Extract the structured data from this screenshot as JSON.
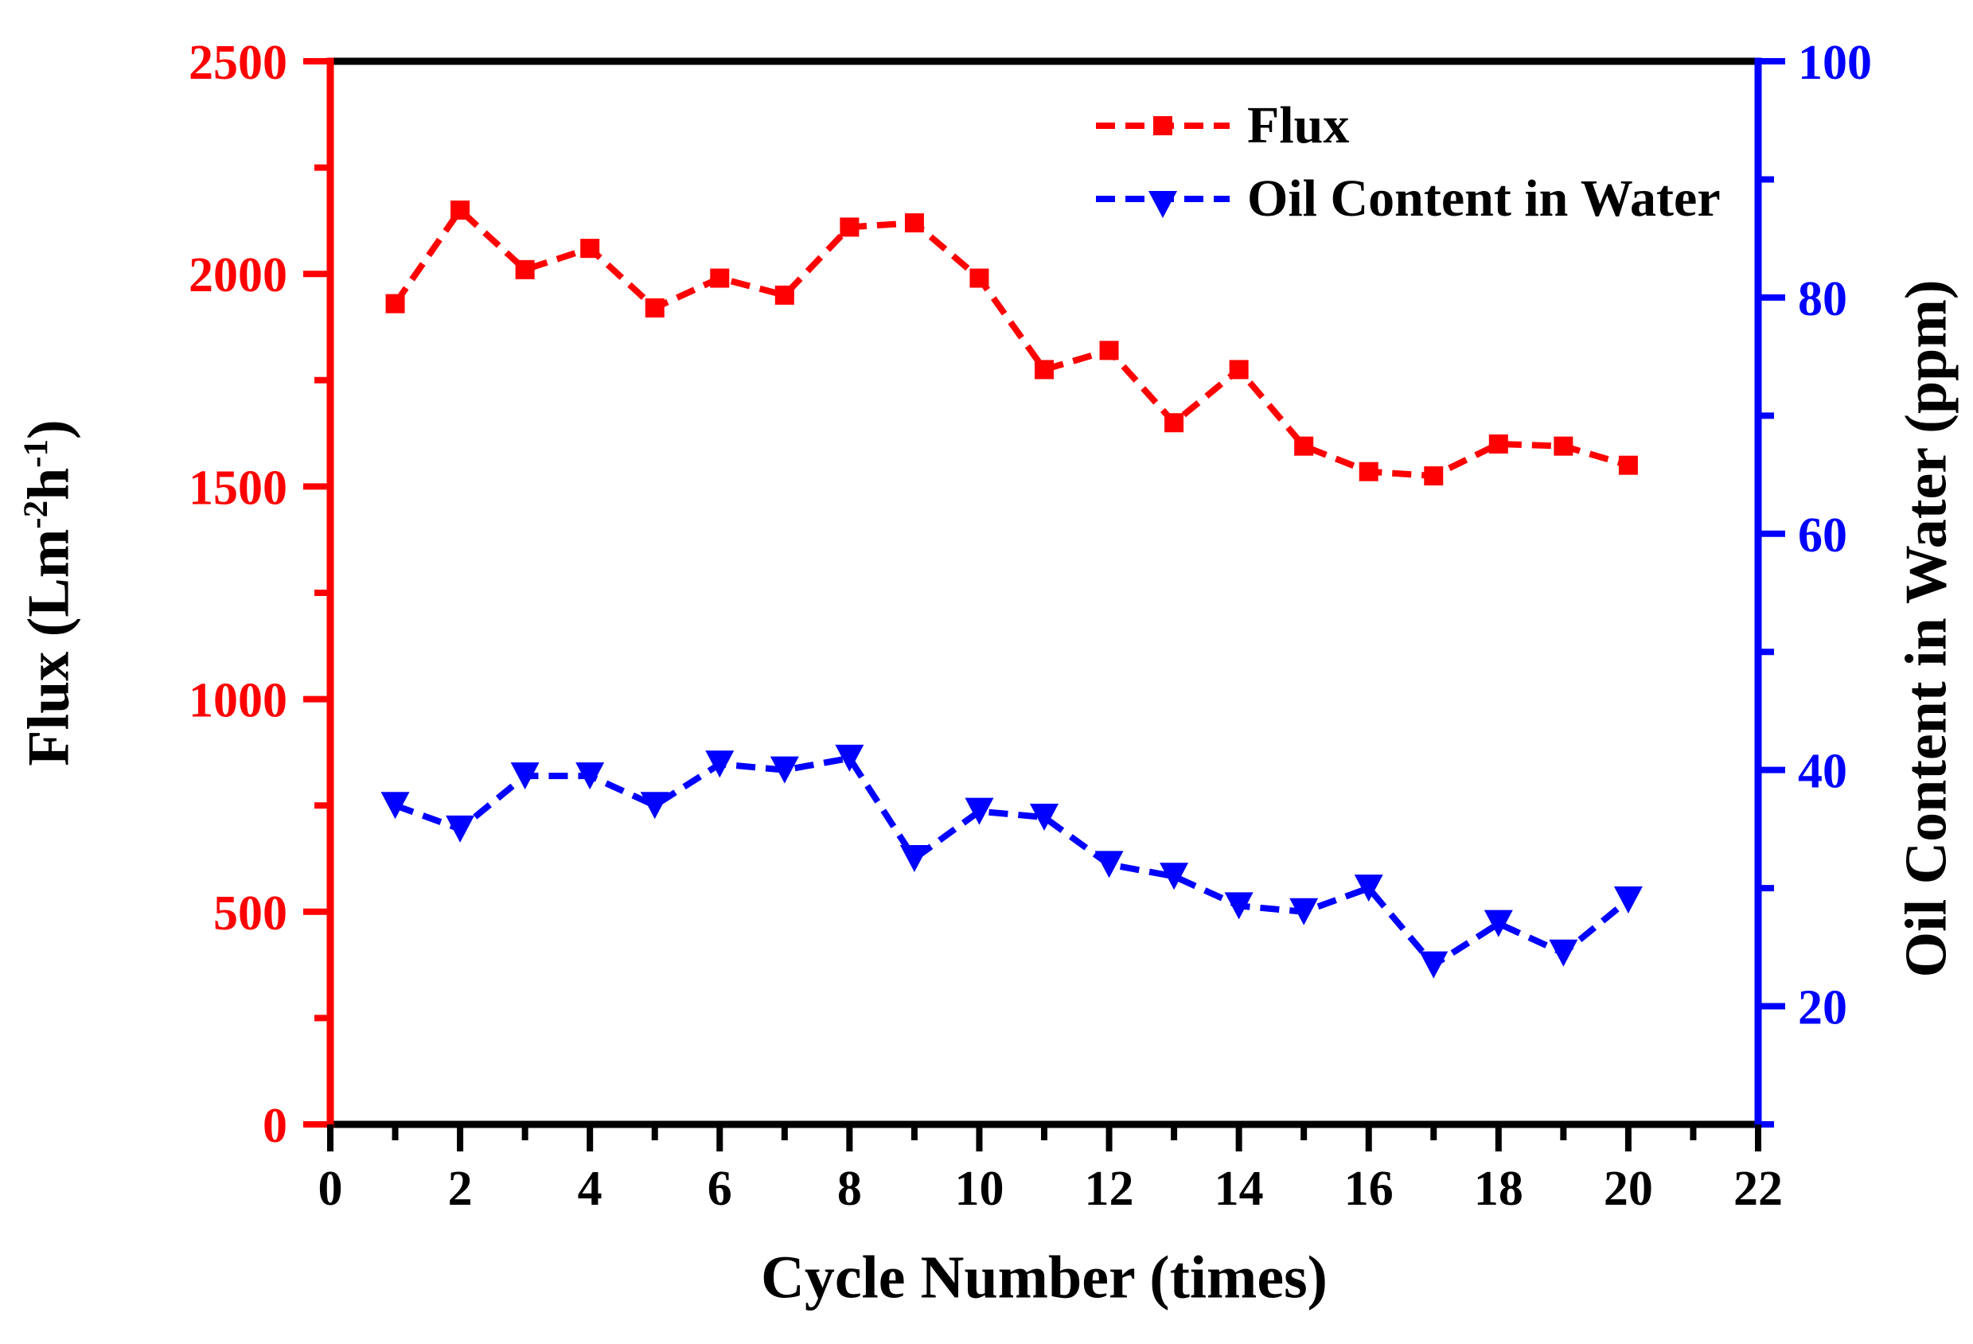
{
  "colors": {
    "flux": "#FF0000",
    "oil": "#0000FF",
    "axis_black": "#000000",
    "background": "#FFFFFF"
  },
  "chart_data": {
    "type": "line",
    "title": "",
    "xlabel": "Cycle Number (times)",
    "x": [
      1,
      2,
      3,
      4,
      5,
      6,
      7,
      8,
      9,
      10,
      11,
      12,
      13,
      14,
      15,
      16,
      17,
      18,
      19,
      20
    ],
    "x_axis": {
      "min": 0,
      "max": 22,
      "tick_values": [
        0,
        2,
        4,
        6,
        8,
        10,
        12,
        14,
        16,
        18,
        20,
        22
      ],
      "tick_labels": [
        "0",
        "2",
        "4",
        "6",
        "8",
        "10",
        "12",
        "14",
        "16",
        "18",
        "20",
        "22"
      ],
      "minor_ticks": [
        1,
        3,
        5,
        7,
        9,
        11,
        13,
        15,
        17,
        19,
        21
      ],
      "color": "#000000"
    },
    "left_axis": {
      "label_parts": {
        "base1": "Flux (Lm",
        "sup1": "-2",
        "base2": "h",
        "sup2": "-1",
        "base3": ")"
      },
      "min": 0,
      "max": 2500,
      "tick_values": [
        0,
        500,
        1000,
        1500,
        2000,
        2500
      ],
      "tick_labels": [
        "0",
        "500",
        "1000",
        "1500",
        "2000",
        "2500"
      ],
      "minor_ticks": [
        250,
        750,
        1250,
        1750,
        2250
      ],
      "color": "#FF0000"
    },
    "right_axis": {
      "label": "Oil Content in Water (ppm)",
      "min": 10,
      "max": 100,
      "tick_values": [
        20,
        40,
        60,
        80,
        100
      ],
      "tick_labels": [
        "20",
        "40",
        "60",
        "80",
        "100"
      ],
      "minor_ticks": [
        10,
        30,
        50,
        70,
        90
      ],
      "color": "#0000FF"
    },
    "series": [
      {
        "name": "Flux",
        "axis": "left",
        "color": "#FF0000",
        "marker": "square",
        "line_style": "dashed",
        "values": [
          1930,
          2150,
          2010,
          2060,
          1920,
          1990,
          1950,
          2110,
          2120,
          1990,
          1775,
          1820,
          1650,
          1775,
          1595,
          1535,
          1525,
          1600,
          1595,
          1550
        ]
      },
      {
        "name": "Oil Content in Water",
        "axis": "right",
        "color": "#0000FF",
        "marker": "triangle-down",
        "line_style": "dashed",
        "values": [
          37,
          35,
          39.5,
          39.5,
          37,
          40.5,
          40,
          41,
          32.5,
          36.5,
          36,
          32,
          31,
          28.5,
          28,
          30,
          23.5,
          27,
          24.5,
          29
        ]
      }
    ],
    "legend": {
      "position": "top-right-inside",
      "frame": false
    }
  }
}
